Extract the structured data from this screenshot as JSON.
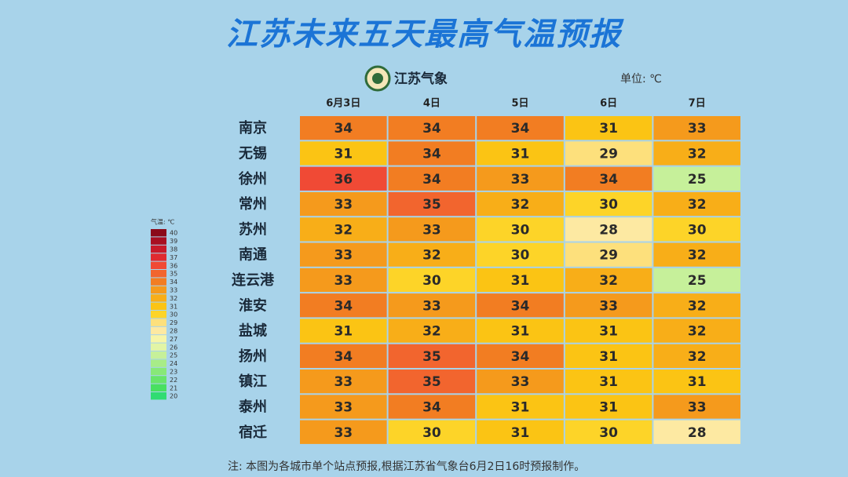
{
  "header": {
    "title": "江苏未来五天最高气温预报",
    "logo_text": "江苏气象",
    "unit": "单位: ℃"
  },
  "table": {
    "columns": [
      "6月3日",
      "4日",
      "5日",
      "6日",
      "7日"
    ],
    "rows": [
      {
        "city": "南京",
        "values": [
          34,
          34,
          34,
          31,
          33
        ]
      },
      {
        "city": "无锡",
        "values": [
          31,
          34,
          31,
          29,
          32
        ]
      },
      {
        "city": "徐州",
        "values": [
          36,
          34,
          33,
          34,
          25
        ]
      },
      {
        "city": "常州",
        "values": [
          33,
          35,
          32,
          30,
          32
        ]
      },
      {
        "city": "苏州",
        "values": [
          32,
          33,
          30,
          28,
          30
        ]
      },
      {
        "city": "南通",
        "values": [
          33,
          32,
          30,
          29,
          32
        ]
      },
      {
        "city": "连云港",
        "values": [
          33,
          30,
          31,
          32,
          25
        ]
      },
      {
        "city": "淮安",
        "values": [
          34,
          33,
          34,
          33,
          32
        ]
      },
      {
        "city": "盐城",
        "values": [
          31,
          32,
          31,
          31,
          32
        ]
      },
      {
        "city": "扬州",
        "values": [
          34,
          35,
          34,
          31,
          32
        ]
      },
      {
        "city": "镇江",
        "values": [
          33,
          35,
          33,
          31,
          31
        ]
      },
      {
        "city": "泰州",
        "values": [
          33,
          34,
          31,
          31,
          33
        ]
      },
      {
        "city": "宿迁",
        "values": [
          33,
          30,
          31,
          30,
          28
        ]
      }
    ]
  },
  "legend": {
    "title": "气温: ℃",
    "levels": [
      {
        "value": 40,
        "color": "#8b0a1a"
      },
      {
        "value": 39,
        "color": "#a80f22"
      },
      {
        "value": 38,
        "color": "#c81a2a"
      },
      {
        "value": 37,
        "color": "#e02a30"
      },
      {
        "value": 36,
        "color": "#f04a35"
      },
      {
        "value": 35,
        "color": "#f2652e"
      },
      {
        "value": 34,
        "color": "#f27d22"
      },
      {
        "value": 33,
        "color": "#f59a1c"
      },
      {
        "value": 32,
        "color": "#f8ae18"
      },
      {
        "value": 31,
        "color": "#fbc414"
      },
      {
        "value": 30,
        "color": "#fdd428"
      },
      {
        "value": 29,
        "color": "#fde07c"
      },
      {
        "value": 28,
        "color": "#fde9a2"
      },
      {
        "value": 27,
        "color": "#f6f5a8"
      },
      {
        "value": 26,
        "color": "#e2f5a6"
      },
      {
        "value": 25,
        "color": "#c6f09a"
      },
      {
        "value": 24,
        "color": "#a8ec88"
      },
      {
        "value": 23,
        "color": "#88e878"
      },
      {
        "value": 22,
        "color": "#68e46a"
      },
      {
        "value": 21,
        "color": "#48e060"
      },
      {
        "value": 20,
        "color": "#30dc72"
      }
    ]
  },
  "footnote": "注: 本图为各城市单个站点预报,根据江苏省气象台6月2日16时预报制作。"
}
